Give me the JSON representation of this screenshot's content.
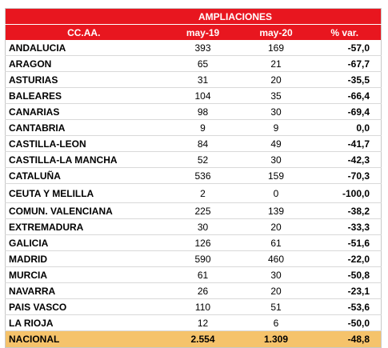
{
  "table": {
    "title": "AMPLIACIONES",
    "headers": [
      "CC.AA.",
      "may-19",
      "may-20",
      "% var."
    ],
    "rows": [
      [
        "ANDALUCIA",
        "393",
        "169",
        "-57,0"
      ],
      [
        "ARAGON",
        "65",
        "21",
        "-67,7"
      ],
      [
        "ASTURIAS",
        "31",
        "20",
        "-35,5"
      ],
      [
        "BALEARES",
        "104",
        "35",
        "-66,4"
      ],
      [
        "CANARIAS",
        "98",
        "30",
        "-69,4"
      ],
      [
        "CANTABRIA",
        "9",
        "9",
        "0,0"
      ],
      [
        "CASTILLA-LEON",
        "84",
        "49",
        "-41,7"
      ],
      [
        "CASTILLA-LA MANCHA",
        "52",
        "30",
        "-42,3"
      ],
      [
        "CATALUÑA",
        "536",
        "159",
        "-70,3"
      ],
      [
        "CEUTA Y MELILLA",
        "2",
        "0",
        "-100,0"
      ],
      [
        "COMUN. VALENCIANA",
        "225",
        "139",
        "-38,2"
      ],
      [
        "EXTREMADURA",
        "30",
        "20",
        "-33,3"
      ],
      [
        "GALICIA",
        "126",
        "61",
        "-51,6"
      ],
      [
        "MADRID",
        "590",
        "460",
        "-22,0"
      ],
      [
        "MURCIA",
        "61",
        "30",
        "-50,8"
      ],
      [
        "NAVARRA",
        "26",
        "20",
        "-23,1"
      ],
      [
        "PAIS VASCO",
        "110",
        "51",
        "-53,6"
      ],
      [
        "LA RIOJA",
        "12",
        "6",
        "-50,0"
      ]
    ],
    "total": [
      "NACIONAL",
      "2.554",
      "1.309",
      "-48,8"
    ]
  },
  "colors": {
    "header_bg": "#e8161f",
    "header_text": "#ffffff",
    "total_bg": "#f5c36b"
  }
}
